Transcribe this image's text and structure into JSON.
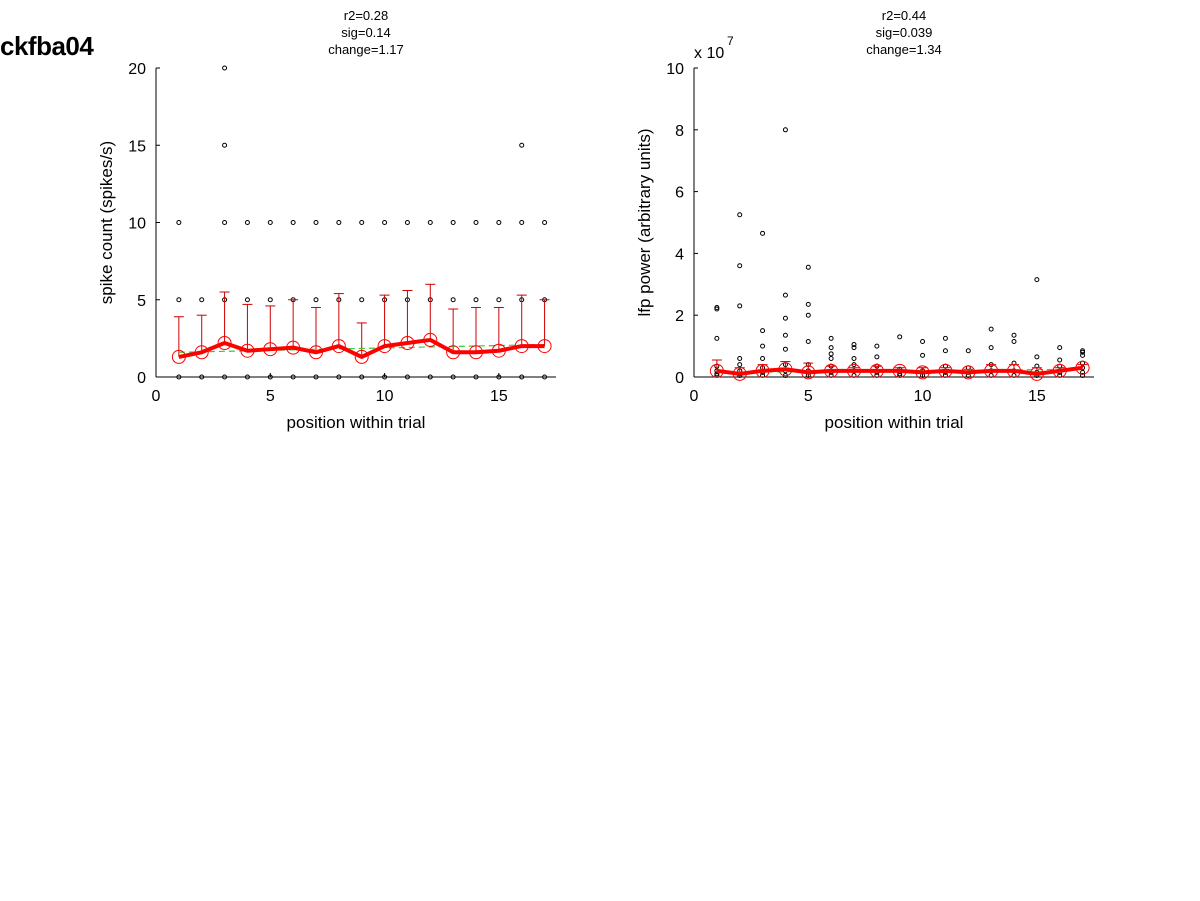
{
  "figure": {
    "title": "ckfba04"
  },
  "chart_data": [
    {
      "type": "scatter",
      "title_lines": [
        "r2=0.28",
        "sig=0.14",
        "change=1.17"
      ],
      "xlabel": "position within trial",
      "ylabel": "spike count (spikes/s)",
      "xlim": [
        0,
        17.5
      ],
      "ylim": [
        0,
        20
      ],
      "xticks": [
        0,
        5,
        10,
        15
      ],
      "yticks": [
        0,
        5,
        10,
        15,
        20
      ],
      "exponent_label": null,
      "grid": false,
      "raw_points": [
        [
          1,
          0
        ],
        [
          1,
          5
        ],
        [
          1,
          10
        ],
        [
          2,
          0
        ],
        [
          2,
          5
        ],
        [
          3,
          0
        ],
        [
          3,
          5
        ],
        [
          3,
          10
        ],
        [
          3,
          15
        ],
        [
          3,
          20
        ],
        [
          4,
          0
        ],
        [
          4,
          5
        ],
        [
          4,
          10
        ],
        [
          5,
          0
        ],
        [
          5,
          5
        ],
        [
          5,
          10
        ],
        [
          6,
          0
        ],
        [
          6,
          5
        ],
        [
          6,
          10
        ],
        [
          7,
          0
        ],
        [
          7,
          5
        ],
        [
          7,
          10
        ],
        [
          8,
          0
        ],
        [
          8,
          5
        ],
        [
          8,
          10
        ],
        [
          9,
          0
        ],
        [
          9,
          5
        ],
        [
          9,
          10
        ],
        [
          10,
          0
        ],
        [
          10,
          5
        ],
        [
          10,
          10
        ],
        [
          11,
          0
        ],
        [
          11,
          5
        ],
        [
          11,
          10
        ],
        [
          12,
          0
        ],
        [
          12,
          5
        ],
        [
          12,
          10
        ],
        [
          13,
          0
        ],
        [
          13,
          5
        ],
        [
          13,
          10
        ],
        [
          14,
          0
        ],
        [
          14,
          5
        ],
        [
          14,
          10
        ],
        [
          15,
          0
        ],
        [
          15,
          5
        ],
        [
          15,
          10
        ],
        [
          16,
          0
        ],
        [
          16,
          5
        ],
        [
          16,
          10
        ],
        [
          16,
          15
        ],
        [
          17,
          0
        ],
        [
          17,
          5
        ],
        [
          17,
          10
        ]
      ],
      "mean_series": {
        "x": [
          1,
          2,
          3,
          4,
          5,
          6,
          7,
          8,
          9,
          10,
          11,
          12,
          13,
          14,
          15,
          16,
          17
        ],
        "y": [
          1.3,
          1.6,
          2.2,
          1.7,
          1.8,
          1.9,
          1.6,
          2.0,
          1.3,
          2.0,
          2.2,
          2.4,
          1.6,
          1.6,
          1.7,
          2.0,
          2.0
        ],
        "err_upper": [
          3.9,
          4.0,
          5.5,
          4.7,
          4.6,
          5.0,
          4.5,
          5.4,
          3.5,
          5.3,
          5.6,
          6.0,
          4.4,
          4.5,
          4.5,
          5.3,
          5.0
        ]
      },
      "fit_series": {
        "x": [
          1,
          17
        ],
        "y": [
          1.6,
          2.1
        ]
      },
      "colors": {
        "mean": "#ff0000",
        "errorbar": "#cc0000",
        "fit": "#33cc33",
        "points": "#000000"
      }
    },
    {
      "type": "scatter",
      "title_lines": [
        "r2=0.44",
        "sig=0.039",
        "change=1.34"
      ],
      "xlabel": "position within trial",
      "ylabel": "lfp power (arbitrary units)",
      "xlim": [
        0,
        17.5
      ],
      "ylim": [
        0,
        10
      ],
      "xticks": [
        0,
        5,
        10,
        15
      ],
      "yticks": [
        0,
        2,
        4,
        6,
        8,
        10
      ],
      "exponent_label": "x 10",
      "exponent_power": "7",
      "grid": false,
      "raw_points": [
        [
          1,
          0.05
        ],
        [
          1,
          0.1
        ],
        [
          1,
          0.2
        ],
        [
          1,
          0.35
        ],
        [
          1,
          1.25
        ],
        [
          1,
          2.2
        ],
        [
          1,
          2.25
        ],
        [
          2,
          0.05
        ],
        [
          2,
          0.1
        ],
        [
          2,
          0.2
        ],
        [
          2,
          0.4
        ],
        [
          2,
          0.6
        ],
        [
          2,
          2.3
        ],
        [
          2,
          3.6
        ],
        [
          2,
          5.25
        ],
        [
          3,
          0.05
        ],
        [
          3,
          0.15
        ],
        [
          3,
          0.3
        ],
        [
          3,
          0.6
        ],
        [
          3,
          1.0
        ],
        [
          3,
          1.5
        ],
        [
          3,
          4.65
        ],
        [
          4,
          0.05
        ],
        [
          4,
          0.2
        ],
        [
          4,
          0.4
        ],
        [
          4,
          0.9
        ],
        [
          4,
          1.35
        ],
        [
          4,
          1.9
        ],
        [
          4,
          2.65
        ],
        [
          4,
          8.0
        ],
        [
          5,
          0.05
        ],
        [
          5,
          0.2
        ],
        [
          5,
          0.4
        ],
        [
          5,
          1.15
        ],
        [
          5,
          2.0
        ],
        [
          5,
          2.35
        ],
        [
          5,
          3.55
        ],
        [
          6,
          0.05
        ],
        [
          6,
          0.15
        ],
        [
          6,
          0.35
        ],
        [
          6,
          0.6
        ],
        [
          6,
          0.75
        ],
        [
          6,
          0.95
        ],
        [
          6,
          1.25
        ],
        [
          7,
          0.05
        ],
        [
          7,
          0.2
        ],
        [
          7,
          0.4
        ],
        [
          7,
          0.6
        ],
        [
          7,
          0.95
        ],
        [
          7,
          1.05
        ],
        [
          8,
          0.05
        ],
        [
          8,
          0.15
        ],
        [
          8,
          0.35
        ],
        [
          8,
          0.65
        ],
        [
          8,
          1.0
        ],
        [
          9,
          0.05
        ],
        [
          9,
          0.1
        ],
        [
          9,
          0.25
        ],
        [
          9,
          1.3
        ],
        [
          10,
          0.05
        ],
        [
          10,
          0.2
        ],
        [
          10,
          0.7
        ],
        [
          10,
          1.15
        ],
        [
          11,
          0.05
        ],
        [
          11,
          0.15
        ],
        [
          11,
          0.35
        ],
        [
          11,
          0.85
        ],
        [
          11,
          1.25
        ],
        [
          12,
          0.05
        ],
        [
          12,
          0.15
        ],
        [
          12,
          0.3
        ],
        [
          12,
          0.85
        ],
        [
          13,
          0.05
        ],
        [
          13,
          0.2
        ],
        [
          13,
          0.4
        ],
        [
          13,
          0.95
        ],
        [
          13,
          1.55
        ],
        [
          14,
          0.05
        ],
        [
          14,
          0.2
        ],
        [
          14,
          0.45
        ],
        [
          14,
          1.15
        ],
        [
          14,
          1.35
        ],
        [
          15,
          0.05
        ],
        [
          15,
          0.15
        ],
        [
          15,
          0.35
        ],
        [
          15,
          0.65
        ],
        [
          15,
          3.15
        ],
        [
          16,
          0.05
        ],
        [
          16,
          0.15
        ],
        [
          16,
          0.35
        ],
        [
          16,
          0.55
        ],
        [
          16,
          0.95
        ],
        [
          17,
          0.05
        ],
        [
          17,
          0.15
        ],
        [
          17,
          0.3
        ],
        [
          17,
          0.45
        ],
        [
          17,
          0.7
        ],
        [
          17,
          0.8
        ],
        [
          17,
          0.85
        ]
      ],
      "mean_series": {
        "x": [
          1,
          2,
          3,
          4,
          5,
          6,
          7,
          8,
          9,
          10,
          11,
          12,
          13,
          14,
          15,
          16,
          17
        ],
        "y": [
          0.2,
          0.1,
          0.2,
          0.25,
          0.15,
          0.2,
          0.2,
          0.2,
          0.2,
          0.15,
          0.2,
          0.15,
          0.2,
          0.2,
          0.1,
          0.2,
          0.3
        ],
        "err_upper": [
          0.55,
          0.3,
          0.4,
          0.5,
          0.45,
          0.35,
          0.3,
          0.35,
          0.3,
          0.3,
          0.3,
          0.25,
          0.4,
          0.4,
          0.3,
          0.3,
          0.4
        ]
      },
      "fit_series": {
        "x": [
          1,
          17
        ],
        "y": [
          0.15,
          0.25
        ]
      },
      "colors": {
        "mean": "#ff0000",
        "errorbar": "#cc0000",
        "fit": "#33cc33",
        "points": "#000000"
      }
    }
  ]
}
